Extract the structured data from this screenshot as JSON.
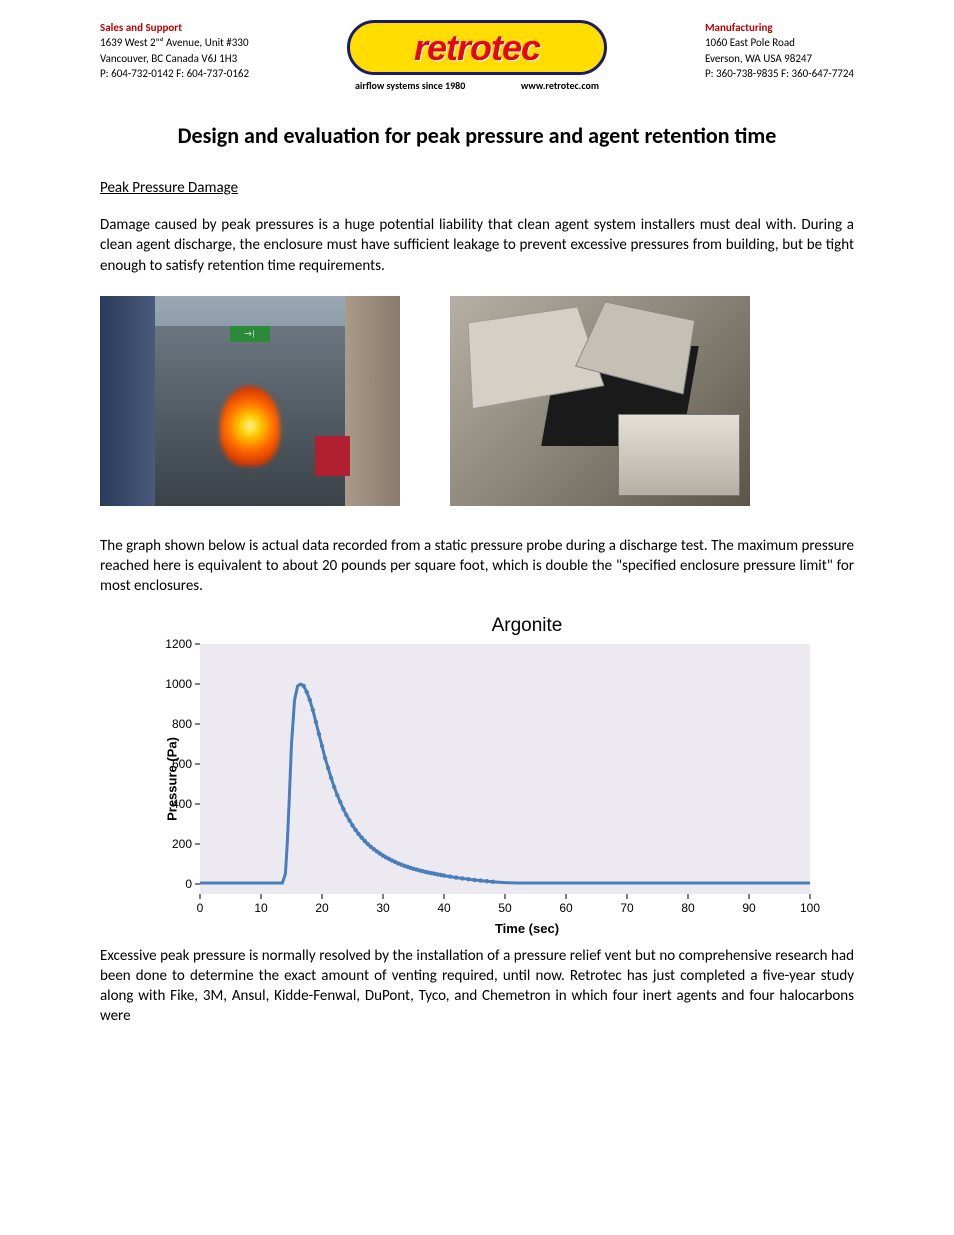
{
  "header": {
    "left": {
      "heading": "Sales and Support",
      "line1": "1639 West 2ⁿᵈ Avenue, Unit #330",
      "line2": "Vancouver, BC Canada V6J 1H3",
      "line3": "P: 604-732-0142 F: 604-737-0162"
    },
    "right": {
      "heading": "Manufacturing",
      "line1": "1060 East Pole Road",
      "line2": "Everson, WA USA 98247",
      "line3": "P: 360-738-9835 F: 360-647-7724"
    },
    "logo": {
      "text": "retrotec",
      "sub_left": "airflow systems since 1980",
      "sub_right": "www.retrotec.com"
    }
  },
  "title": "Design and evaluation for peak pressure and agent retention time",
  "section_heading": "Peak Pressure Damage",
  "para1": "Damage caused by peak pressures is a huge potential liability that clean agent system installers must deal with. During a clean agent discharge, the enclosure must have sufficient leakage to prevent excessive pressures from building, but be tight enough to satisfy retention time requirements.",
  "para2": "The graph shown below is actual data recorded from a static pressure probe during a discharge test. The maximum pressure reached here is equivalent to about 20 pounds per square foot, which is double the \"specified enclosure pressure limit\" for most enclosures.",
  "para3": "Excessive peak pressure is normally resolved by the installation of a pressure relief vent but no comprehensive research had been done to determine the exact amount of venting required, until now. Retrotec has just completed a five-year study along with Fike, 3M, Ansul, Kidde-Fenwal, DuPont, Tyco, and Chemetron in which four inert agents and four halocarbons were",
  "photo1": {
    "exit_label": "→|"
  },
  "chart": {
    "title": "Argonite",
    "type": "line",
    "xlabel": "Time (sec)",
    "ylabel": "Pressure (Pa)",
    "xlim": [
      0,
      100
    ],
    "ylim": [
      -50,
      1200
    ],
    "xticks": [
      0,
      10,
      20,
      30,
      40,
      50,
      60,
      70,
      80,
      90,
      100
    ],
    "yticks": [
      0,
      200,
      400,
      600,
      800,
      1000,
      1200
    ],
    "plot_bg": "#ece9f1",
    "line_color": "#4a7ebb",
    "line_width": 3,
    "tick_fontsize": 12,
    "label_fontsize": 13,
    "title_fontsize": 19,
    "data": [
      [
        0,
        5
      ],
      [
        2,
        5
      ],
      [
        4,
        5
      ],
      [
        6,
        5
      ],
      [
        8,
        5
      ],
      [
        10,
        5
      ],
      [
        12,
        5
      ],
      [
        13,
        5
      ],
      [
        13.5,
        5
      ],
      [
        14,
        50
      ],
      [
        14.3,
        200
      ],
      [
        14.6,
        400
      ],
      [
        15,
        700
      ],
      [
        15.5,
        920
      ],
      [
        16,
        990
      ],
      [
        16.5,
        1000
      ],
      [
        17,
        990
      ],
      [
        17.5,
        960
      ],
      [
        18,
        920
      ],
      [
        18.5,
        870
      ],
      [
        19,
        810
      ],
      [
        19.5,
        750
      ],
      [
        20,
        690
      ],
      [
        20.5,
        630
      ],
      [
        21,
        580
      ],
      [
        21.5,
        530
      ],
      [
        22,
        485
      ],
      [
        22.5,
        445
      ],
      [
        23,
        410
      ],
      [
        23.5,
        375
      ],
      [
        24,
        345
      ],
      [
        24.5,
        318
      ],
      [
        25,
        293
      ],
      [
        25.5,
        270
      ],
      [
        26,
        250
      ],
      [
        26.5,
        232
      ],
      [
        27,
        215
      ],
      [
        27.5,
        200
      ],
      [
        28,
        186
      ],
      [
        28.5,
        174
      ],
      [
        29,
        163
      ],
      [
        29.5,
        152
      ],
      [
        30,
        142
      ],
      [
        30.5,
        133
      ],
      [
        31,
        125
      ],
      [
        31.5,
        117
      ],
      [
        32,
        110
      ],
      [
        32.5,
        103
      ],
      [
        33,
        97
      ],
      [
        33.5,
        91
      ],
      [
        34,
        86
      ],
      [
        34.5,
        81
      ],
      [
        35,
        76
      ],
      [
        35.5,
        72
      ],
      [
        36,
        68
      ],
      [
        36.5,
        64
      ],
      [
        37,
        60
      ],
      [
        37.5,
        57
      ],
      [
        38,
        54
      ],
      [
        38.5,
        51
      ],
      [
        39,
        48
      ],
      [
        39.5,
        45
      ],
      [
        40,
        42
      ],
      [
        41,
        37
      ],
      [
        42,
        32
      ],
      [
        43,
        28
      ],
      [
        44,
        24
      ],
      [
        45,
        20
      ],
      [
        46,
        17
      ],
      [
        47,
        14
      ],
      [
        48,
        11
      ],
      [
        49,
        9
      ],
      [
        50,
        7
      ],
      [
        52,
        5
      ],
      [
        55,
        5
      ],
      [
        60,
        5
      ],
      [
        70,
        5
      ],
      [
        80,
        5
      ],
      [
        90,
        5
      ],
      [
        100,
        5
      ]
    ]
  }
}
